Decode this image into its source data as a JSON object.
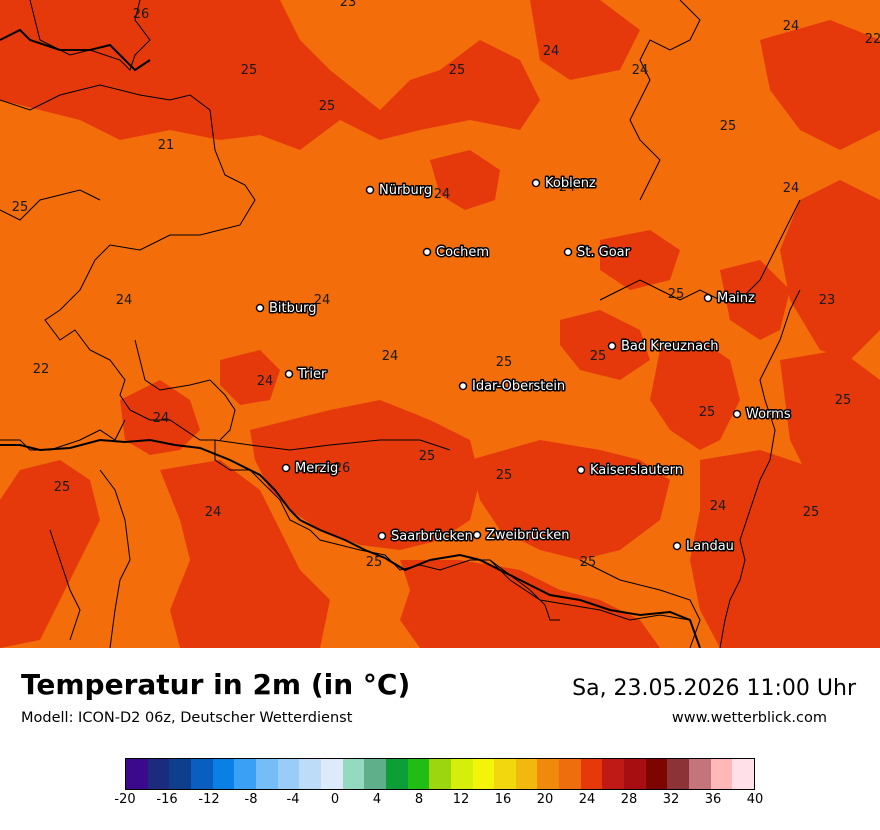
{
  "map": {
    "cities": [
      {
        "name": "Nürburg"
      },
      {
        "name": "Koblenz"
      },
      {
        "name": "Cochem"
      },
      {
        "name": "St. Goar"
      },
      {
        "name": "Bitburg"
      },
      {
        "name": "Mainz"
      },
      {
        "name": "Bad Kreuznach"
      },
      {
        "name": "Trier"
      },
      {
        "name": "Idar-Oberstein"
      },
      {
        "name": "Worms"
      },
      {
        "name": "Merzig"
      },
      {
        "name": "Kaiserslautern"
      },
      {
        "name": "Saarbrücken"
      },
      {
        "name": "Zweibrücken"
      },
      {
        "name": "Landau"
      }
    ],
    "values": [
      "26",
      "23",
      "25",
      "25",
      "24",
      "22",
      "25",
      "24",
      "25",
      "21",
      "24",
      "25",
      "24",
      "24",
      "24",
      "24",
      "24",
      "25",
      "23",
      "22",
      "24",
      "25",
      "24",
      "25",
      "26",
      "25",
      "25",
      "25",
      "25",
      "24",
      "25",
      "24",
      "24",
      "25",
      "25",
      "25"
    ],
    "colors": {
      "warm": "#f36d0b",
      "hot": "#e5390c",
      "border": "#000000"
    }
  },
  "footer": {
    "title": "Temperatur in 2m (in °C)",
    "subtitle": "Modell: ICON-D2 06z, Deutscher Wetterdienst",
    "datetime": "Sa, 23.05.2026 11:00 Uhr",
    "website": "www.wetterblick.com"
  },
  "legend": {
    "ticks": [
      "-20",
      "-16",
      "-12",
      "-8",
      "-4",
      "0",
      "4",
      "8",
      "12",
      "16",
      "20",
      "24",
      "28",
      "32",
      "36",
      "40"
    ],
    "colors": [
      "#3b0a8c",
      "#1c2b7d",
      "#0e3f8c",
      "#0a5ec0",
      "#0a80e6",
      "#3aa0f5",
      "#76bcf7",
      "#99ccf7",
      "#bddcf7",
      "#dceafa",
      "#93dac0",
      "#5fb08a",
      "#0e9e38",
      "#20bd14",
      "#9bd60e",
      "#d6ef0a",
      "#f4f40a",
      "#f2d70e",
      "#f2b80d",
      "#ef8a0c",
      "#ee6e0d",
      "#e5390c",
      "#c01a16",
      "#a60e12",
      "#7c0500",
      "#8c3338",
      "#c4757c",
      "#ffb7b7",
      "#ffe0e8"
    ]
  }
}
